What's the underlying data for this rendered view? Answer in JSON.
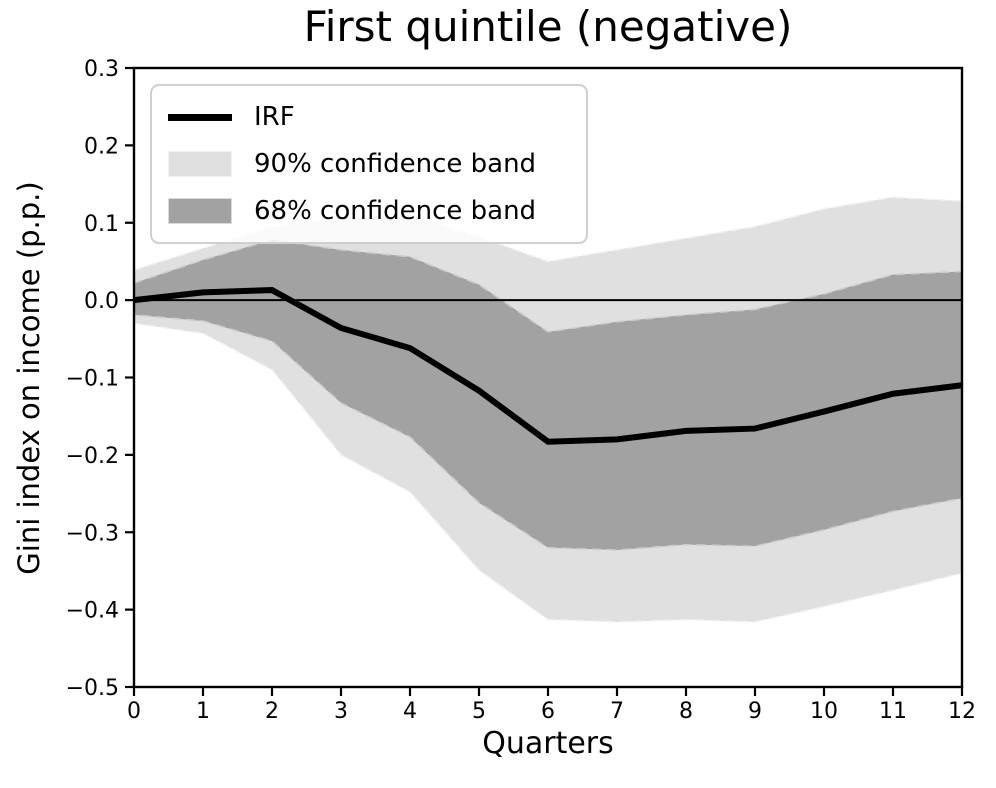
{
  "chart_data": {
    "type": "line",
    "title": "First quintile (negative)",
    "xlabel": "Quarters",
    "ylabel": "Gini index on income (p.p.)",
    "xlim": [
      0,
      12
    ],
    "ylim": [
      -0.5,
      0.3
    ],
    "grid": false,
    "zero_line": true,
    "x": [
      0,
      1,
      2,
      3,
      4,
      5,
      6,
      7,
      8,
      9,
      10,
      11,
      12
    ],
    "xtick_labels": [
      "0",
      "1",
      "2",
      "3",
      "4",
      "5",
      "6",
      "7",
      "8",
      "9",
      "10",
      "11",
      "12"
    ],
    "ytick_values": [
      0.3,
      0.2,
      0.1,
      0.0,
      -0.1,
      -0.2,
      -0.3,
      -0.4,
      -0.5
    ],
    "ytick_labels": [
      "0.3",
      "0.2",
      "0.1",
      "0.0",
      "−0.1",
      "−0.2",
      "−0.3",
      "−0.4",
      "−0.5"
    ],
    "series": [
      {
        "name": "IRF",
        "kind": "line",
        "color": "#000000",
        "values": [
          0.0,
          0.01,
          0.013,
          -0.036,
          -0.062,
          -0.117,
          -0.183,
          -0.18,
          -0.169,
          -0.166,
          -0.144,
          -0.121,
          -0.11
        ]
      },
      {
        "name": "90% confidence band",
        "kind": "band",
        "color": "#e0e0e0",
        "edge_color": "#f2f2f2",
        "upper": [
          0.039,
          0.067,
          0.095,
          0.105,
          0.11,
          0.082,
          0.05,
          0.065,
          0.08,
          0.095,
          0.118,
          0.133,
          0.128
        ],
        "lower": [
          -0.03,
          -0.043,
          -0.09,
          -0.2,
          -0.248,
          -0.349,
          -0.413,
          -0.416,
          -0.413,
          -0.416,
          -0.396,
          -0.375,
          -0.353
        ]
      },
      {
        "name": "68% confidence band",
        "kind": "band",
        "color": "#a2a2a2",
        "edge_color": "#cccccc",
        "upper": [
          0.022,
          0.052,
          0.078,
          0.065,
          0.056,
          0.02,
          -0.041,
          -0.028,
          -0.019,
          -0.012,
          0.008,
          0.033,
          0.037
        ],
        "lower": [
          -0.019,
          -0.027,
          -0.053,
          -0.133,
          -0.177,
          -0.262,
          -0.32,
          -0.323,
          -0.316,
          -0.318,
          -0.297,
          -0.273,
          -0.256
        ]
      }
    ],
    "legend": {
      "position": "upper-left",
      "items": [
        {
          "label": "IRF",
          "swatch": "line",
          "color": "#000000"
        },
        {
          "label": "90% confidence band",
          "swatch": "patch",
          "color": "#e0e0e0"
        },
        {
          "label": "68% confidence band",
          "swatch": "patch",
          "color": "#a2a2a2"
        }
      ]
    }
  }
}
